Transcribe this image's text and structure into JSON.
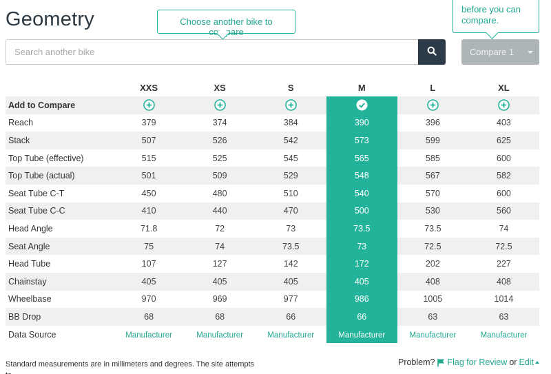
{
  "page": {
    "title": "Geometry"
  },
  "tooltips": {
    "choose": "Choose another bike to compare",
    "compare_line1": "before you can",
    "compare_line2": "compare."
  },
  "search": {
    "placeholder": "Search another bike",
    "icon": "search-icon"
  },
  "compare_button": {
    "label": "Compare 1"
  },
  "table": {
    "columns": [
      "XXS",
      "XS",
      "S",
      "M",
      "L",
      "XL"
    ],
    "selected_column": "M",
    "add_row_label": "Add to Compare",
    "rows": [
      {
        "label": "Reach",
        "values": [
          "379",
          "374",
          "384",
          "390",
          "396",
          "403"
        ]
      },
      {
        "label": "Stack",
        "values": [
          "507",
          "526",
          "542",
          "573",
          "599",
          "625"
        ]
      },
      {
        "label": "Top Tube (effective)",
        "values": [
          "515",
          "525",
          "545",
          "565",
          "585",
          "600"
        ]
      },
      {
        "label": "Top Tube (actual)",
        "values": [
          "501",
          "509",
          "529",
          "548",
          "567",
          "582"
        ]
      },
      {
        "label": "Seat Tube C-T",
        "values": [
          "450",
          "480",
          "510",
          "540",
          "570",
          "600"
        ]
      },
      {
        "label": "Seat Tube C-C",
        "values": [
          "410",
          "440",
          "470",
          "500",
          "530",
          "560"
        ]
      },
      {
        "label": "Head Angle",
        "values": [
          "71.8",
          "72",
          "73",
          "73.5",
          "73.5",
          "74"
        ]
      },
      {
        "label": "Seat Angle",
        "values": [
          "75",
          "74",
          "73.5",
          "73",
          "72.5",
          "72.5"
        ]
      },
      {
        "label": "Head Tube",
        "values": [
          "107",
          "127",
          "142",
          "172",
          "202",
          "227"
        ]
      },
      {
        "label": "Chainstay",
        "values": [
          "405",
          "405",
          "405",
          "405",
          "408",
          "408"
        ]
      },
      {
        "label": "Wheelbase",
        "values": [
          "970",
          "969",
          "977",
          "986",
          "1005",
          "1014"
        ]
      },
      {
        "label": "BB Drop",
        "values": [
          "68",
          "68",
          "66",
          "66",
          "63",
          "63"
        ]
      }
    ],
    "source_row_label": "Data Source",
    "source_values": [
      "Manufacturer",
      "Manufacturer",
      "Manufacturer",
      "Manufacturer",
      "Manufacturer",
      "Manufacturer"
    ]
  },
  "footer": {
    "note": "Standard measurements are in millimeters and degrees. The site attempts to",
    "problem_label": "Problem?",
    "flag_link": "Flag for Review",
    "or": "or",
    "edit_link": "Edit"
  },
  "colors": {
    "accent": "#22b39a",
    "dark": "#2d3a48",
    "button_disabled": "#adb5b6"
  }
}
